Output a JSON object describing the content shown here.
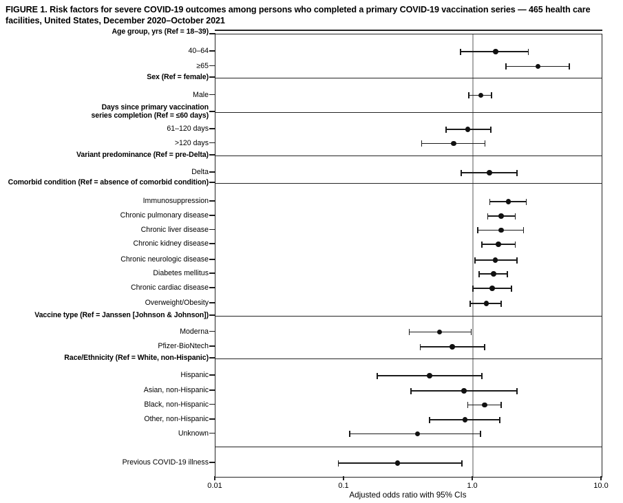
{
  "figure": {
    "title": "FIGURE 1. Risk factors for severe COVID-19 outcomes among persons who completed a primary COVID-19 vaccination series — 465 health care facilities, United States, December 2020–October 2021"
  },
  "chart_data": {
    "type": "scatter",
    "subtype": "forest-plot",
    "xlabel": "Adjusted odds ratio with 95% CIs",
    "x_scale": "log",
    "xlim": [
      0.01,
      10.0
    ],
    "x_ticks": [
      "0.01",
      "0.1",
      "1.0",
      "10.0"
    ],
    "x_tick_values": [
      0.01,
      0.1,
      1.0,
      10.0
    ],
    "reference_line_x": 1.0,
    "grid": false,
    "point_color": "#111111",
    "reference_line_color": "#ababab",
    "sections": [
      {
        "header": "Age group, yrs (Ref = 18–39)",
        "items": [
          {
            "label": "40–64",
            "or": 1.5,
            "ci_low": 0.8,
            "ci_high": 2.7
          },
          {
            "label": "≥65",
            "or": 3.2,
            "ci_low": 1.8,
            "ci_high": 5.6
          }
        ]
      },
      {
        "header": "Sex (Ref = female)",
        "items": [
          {
            "label": "Male",
            "or": 1.15,
            "ci_low": 0.93,
            "ci_high": 1.4
          }
        ]
      },
      {
        "header": "Days since primary vaccination\nseries completion (Ref = ≤60 days)",
        "items": [
          {
            "label": "61–120 days",
            "or": 0.91,
            "ci_low": 0.62,
            "ci_high": 1.38
          },
          {
            "label": ">120 days",
            "or": 0.71,
            "ci_low": 0.4,
            "ci_high": 1.24
          }
        ]
      },
      {
        "header": "Variant predominance (Ref = pre-Delta)",
        "items": [
          {
            "label": "Delta",
            "or": 1.34,
            "ci_low": 0.81,
            "ci_high": 2.2
          }
        ]
      },
      {
        "header": "Comorbid condition (Ref = absence of comorbid condition)",
        "items": [
          {
            "label": "Immunosuppression",
            "or": 1.88,
            "ci_low": 1.35,
            "ci_high": 2.6
          },
          {
            "label": "Chronic pulmonary disease",
            "or": 1.66,
            "ci_low": 1.3,
            "ci_high": 2.13
          },
          {
            "label": "Chronic liver disease",
            "or": 1.66,
            "ci_low": 1.09,
            "ci_high": 2.47
          },
          {
            "label": "Chronic kidney disease",
            "or": 1.58,
            "ci_low": 1.17,
            "ci_high": 2.13
          },
          {
            "label": "Chronic neurologic disease",
            "or": 1.49,
            "ci_low": 1.04,
            "ci_high": 2.2
          },
          {
            "label": "Diabetes mellitus",
            "or": 1.45,
            "ci_low": 1.12,
            "ci_high": 1.85
          },
          {
            "label": "Chronic cardiac disease",
            "or": 1.41,
            "ci_low": 1.0,
            "ci_high": 2.0
          },
          {
            "label": "Overweight/Obesity",
            "or": 1.27,
            "ci_low": 0.95,
            "ci_high": 1.66
          }
        ]
      },
      {
        "header": "Vaccine type (Ref = Janssen [Johnson & Johnson])",
        "items": [
          {
            "label": "Moderna",
            "or": 0.55,
            "ci_low": 0.32,
            "ci_high": 0.97
          },
          {
            "label": "Pfizer-BioNtech",
            "or": 0.69,
            "ci_low": 0.39,
            "ci_high": 1.23
          }
        ]
      },
      {
        "header": "Race/Ethnicity (Ref = White, non-Hispanic)",
        "items": [
          {
            "label": "Hispanic",
            "or": 0.46,
            "ci_low": 0.18,
            "ci_high": 1.17
          },
          {
            "label": "Asian, non-Hispanic",
            "or": 0.85,
            "ci_low": 0.33,
            "ci_high": 2.2
          },
          {
            "label": "Black, non-Hispanic",
            "or": 1.23,
            "ci_low": 0.91,
            "ci_high": 1.66
          },
          {
            "label": "Other, non-Hispanic",
            "or": 0.87,
            "ci_low": 0.46,
            "ci_high": 1.62
          },
          {
            "label": "Unknown",
            "or": 0.37,
            "ci_low": 0.11,
            "ci_high": 1.15
          }
        ]
      },
      {
        "header": null,
        "items": [
          {
            "label": "Previous COVID-19 illness",
            "or": 0.26,
            "ci_low": 0.09,
            "ci_high": 0.82
          }
        ]
      }
    ]
  }
}
